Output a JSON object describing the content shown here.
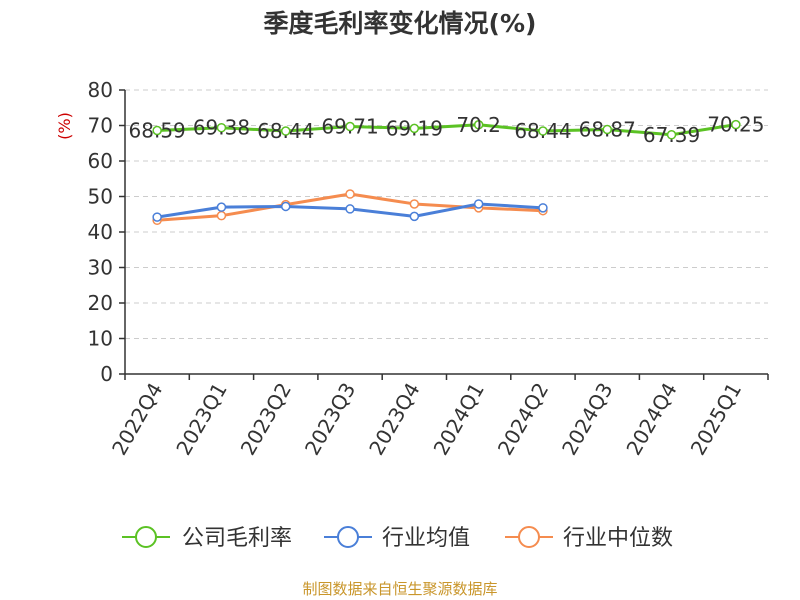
{
  "chart_data": {
    "type": "line",
    "title": "季度毛利率变化情况(%)",
    "ylabel": "(%)",
    "ylim": [
      0,
      80
    ],
    "yticks": [
      0,
      10,
      20,
      30,
      40,
      50,
      60,
      70,
      80
    ],
    "categories": [
      "2022Q4",
      "2023Q1",
      "2023Q2",
      "2023Q3",
      "2023Q4",
      "2024Q1",
      "2024Q2",
      "2024Q3",
      "2024Q4",
      "2025Q1"
    ],
    "grid": true,
    "legend": "bottom",
    "series": [
      {
        "name": "公司毛利率",
        "color": "#5bc224",
        "values": [
          68.59,
          69.38,
          68.44,
          69.71,
          69.19,
          70.2,
          68.44,
          68.87,
          67.39,
          70.25
        ],
        "labels": [
          "68.59",
          "69.38",
          "68.44",
          "69.71",
          "69.19",
          "70.2",
          "68.44",
          "68.87",
          "67.39",
          "70.25"
        ]
      },
      {
        "name": "行业均值",
        "color": "#4a7fd8",
        "values": [
          44.2,
          47.0,
          47.2,
          46.5,
          44.4,
          47.9,
          46.8,
          null,
          null,
          null
        ]
      },
      {
        "name": "行业中位数",
        "color": "#f58c4f",
        "values": [
          43.3,
          44.6,
          47.7,
          50.7,
          47.9,
          46.8,
          46.0,
          null,
          null,
          null
        ]
      }
    ]
  },
  "source": "制图数据来自恒生聚源数据库"
}
